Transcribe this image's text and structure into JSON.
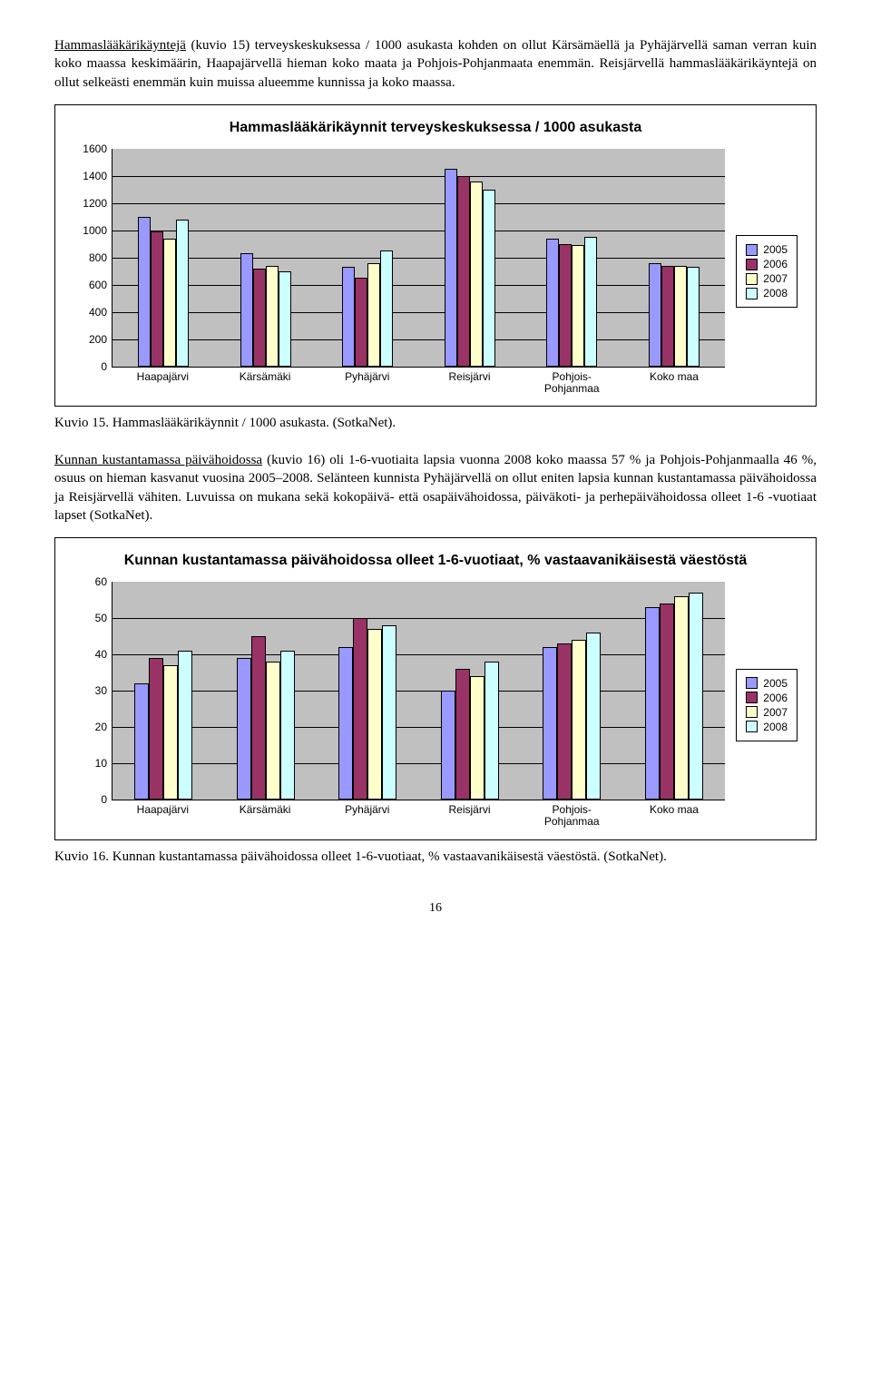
{
  "para1": {
    "runin": "Hammaslääkärikäyntejä",
    "rest": " (kuvio 15) terveyskeskuksessa / 1000 asukasta kohden on ollut Kärsämäellä ja Pyhäjärvellä saman verran kuin koko maassa keskimäärin, Haapajärvellä hieman koko maata ja Pohjois-Pohjanmaata enemmän. Reisjärvellä hammaslääkärikäyntejä on ollut selkeästi enemmän kuin muissa alueemme kunnissa ja koko maassa."
  },
  "chart1": {
    "title": "Hammaslääkärikäynnit terveyskeskuksessa / 1000 asukasta",
    "ylim": 1600,
    "ytick_step": 200,
    "categories": [
      "Haapajärvi",
      "Kärsämäki",
      "Pyhäjärvi",
      "Reisjärvi",
      "Pohjois-\nPohjanmaa",
      "Koko maa"
    ],
    "series": [
      {
        "label": "2005",
        "color": "#9999ff"
      },
      {
        "label": "2006",
        "color": "#993366"
      },
      {
        "label": "2007",
        "color": "#ffffcc"
      },
      {
        "label": "2008",
        "color": "#ccffff"
      }
    ],
    "data": [
      [
        1100,
        990,
        940,
        1080
      ],
      [
        830,
        720,
        740,
        700
      ],
      [
        730,
        650,
        760,
        850
      ],
      [
        1450,
        1400,
        1360,
        1300
      ],
      [
        940,
        900,
        890,
        950
      ],
      [
        760,
        740,
        740,
        730
      ]
    ]
  },
  "caption1": "Kuvio 15. Hammaslääkärikäynnit / 1000 asukasta. (SotkaNet).",
  "para2": {
    "runin": "Kunnan kustantamassa päivähoidossa",
    "rest": " (kuvio 16) oli 1-6-vuotiaita lapsia vuonna 2008 koko maassa 57 % ja Pohjois-Pohjanmaalla 46 %, osuus on hieman kasvanut vuosina 2005–2008. Selänteen kunnista Pyhäjärvellä on ollut eniten lapsia kunnan kustantamassa päivähoidossa ja Reisjärvellä vähiten. Luvuissa on mukana sekä kokopäivä- että osapäivähoidossa, päiväkoti- ja perhepäivähoidossa olleet 1-6 -vuotiaat lapset (SotkaNet)."
  },
  "chart2": {
    "title": "Kunnan kustantamassa päivähoidossa olleet 1-6-vuotiaat, % vastaavanikäisestä väestöstä",
    "ylim": 60,
    "ytick_step": 10,
    "categories": [
      "Haapajärvi",
      "Kärsämäki",
      "Pyhäjärvi",
      "Reisjärvi",
      "Pohjois-\nPohjanmaa",
      "Koko maa"
    ],
    "series": [
      {
        "label": "2005",
        "color": "#9999ff"
      },
      {
        "label": "2006",
        "color": "#993366"
      },
      {
        "label": "2007",
        "color": "#ffffcc"
      },
      {
        "label": "2008",
        "color": "#ccffff"
      }
    ],
    "data": [
      [
        32,
        39,
        37,
        41
      ],
      [
        39,
        45,
        38,
        41
      ],
      [
        42,
        50,
        47,
        48
      ],
      [
        30,
        36,
        34,
        38
      ],
      [
        42,
        43,
        44,
        46
      ],
      [
        53,
        54,
        56,
        57
      ]
    ]
  },
  "caption2": "Kuvio 16. Kunnan kustantamassa päivähoidossa olleet 1-6-vuotiaat, % vastaavanikäisestä väestöstä. (SotkaNet).",
  "page_number": "16"
}
